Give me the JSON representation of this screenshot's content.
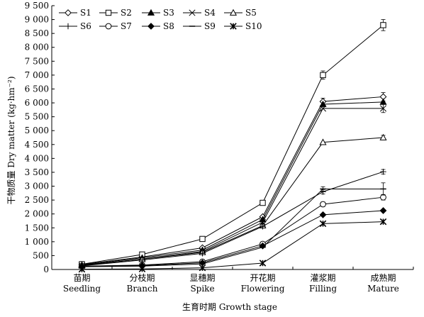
{
  "chart_data": {
    "type": "line",
    "title": "",
    "xlabel": "生育时期  Growth stage",
    "ylabel": "干物质量  Dry matter (kg·hm⁻²)",
    "ylim": [
      0,
      9500
    ],
    "ytick_labels": [
      "0",
      "500",
      "1 000",
      "1 500",
      "2 000",
      "2 500",
      "3 000",
      "3 500",
      "4 000",
      "4 500",
      "5 000",
      "5 500",
      "6 000",
      "6 500",
      "7 000",
      "7 500",
      "8 000",
      "8 500",
      "9 000",
      "9 500"
    ],
    "categories": [
      {
        "zh": "苗期",
        "en": "Seedling"
      },
      {
        "zh": "分枝期",
        "en": "Branch"
      },
      {
        "zh": "显穗期",
        "en": "Spike"
      },
      {
        "zh": "开花期",
        "en": "Flowering"
      },
      {
        "zh": "灌浆期",
        "en": "Filling"
      },
      {
        "zh": "成熟期",
        "en": "Mature"
      }
    ],
    "grid": false,
    "legend_position": "top-left",
    "error_bars": {
      "series": "S2, S1, S3, S4, S5, S9, S6",
      "note": "error bars shown at later stages"
    },
    "series": [
      {
        "name": "S1",
        "marker": "diamond-open",
        "values": [
          180,
          450,
          780,
          1900,
          6050,
          6220
        ],
        "err": [
          0,
          0,
          0,
          0,
          120,
          150
        ]
      },
      {
        "name": "S2",
        "marker": "square-open",
        "values": [
          190,
          540,
          1100,
          2400,
          7000,
          8800
        ],
        "err": [
          0,
          0,
          0,
          0,
          150,
          200
        ]
      },
      {
        "name": "S3",
        "marker": "triangle-filled",
        "values": [
          160,
          420,
          700,
          1800,
          5950,
          6030
        ],
        "err": [
          0,
          0,
          0,
          0,
          0,
          0
        ]
      },
      {
        "name": "S4",
        "marker": "x",
        "values": [
          140,
          380,
          650,
          1700,
          5800,
          5800
        ],
        "err": [
          0,
          0,
          0,
          0,
          0,
          150
        ]
      },
      {
        "name": "S5",
        "marker": "triangle-open",
        "values": [
          150,
          370,
          620,
          1580,
          4580,
          4750
        ],
        "err": [
          0,
          0,
          0,
          0,
          0,
          80
        ]
      },
      {
        "name": "S6",
        "marker": "plus",
        "values": [
          130,
          340,
          580,
          1550,
          2800,
          3520
        ],
        "err": [
          0,
          0,
          0,
          0,
          80,
          80
        ]
      },
      {
        "name": "S7",
        "marker": "circle-open",
        "values": [
          120,
          160,
          280,
          920,
          2350,
          2600
        ],
        "err": [
          0,
          0,
          0,
          0,
          80,
          100
        ]
      },
      {
        "name": "S8",
        "marker": "diamond-filled",
        "values": [
          110,
          140,
          240,
          850,
          1970,
          2120
        ],
        "err": [
          0,
          0,
          0,
          0,
          0,
          0
        ]
      },
      {
        "name": "S9",
        "marker": "dash",
        "values": [
          100,
          120,
          200,
          800,
          2900,
          2900
        ],
        "err": [
          0,
          0,
          0,
          0,
          80,
          220
        ]
      },
      {
        "name": "S10",
        "marker": "asterisk",
        "values": [
          10,
          20,
          60,
          230,
          1650,
          1720
        ],
        "err": [
          0,
          0,
          0,
          0,
          0,
          0
        ]
      }
    ]
  }
}
